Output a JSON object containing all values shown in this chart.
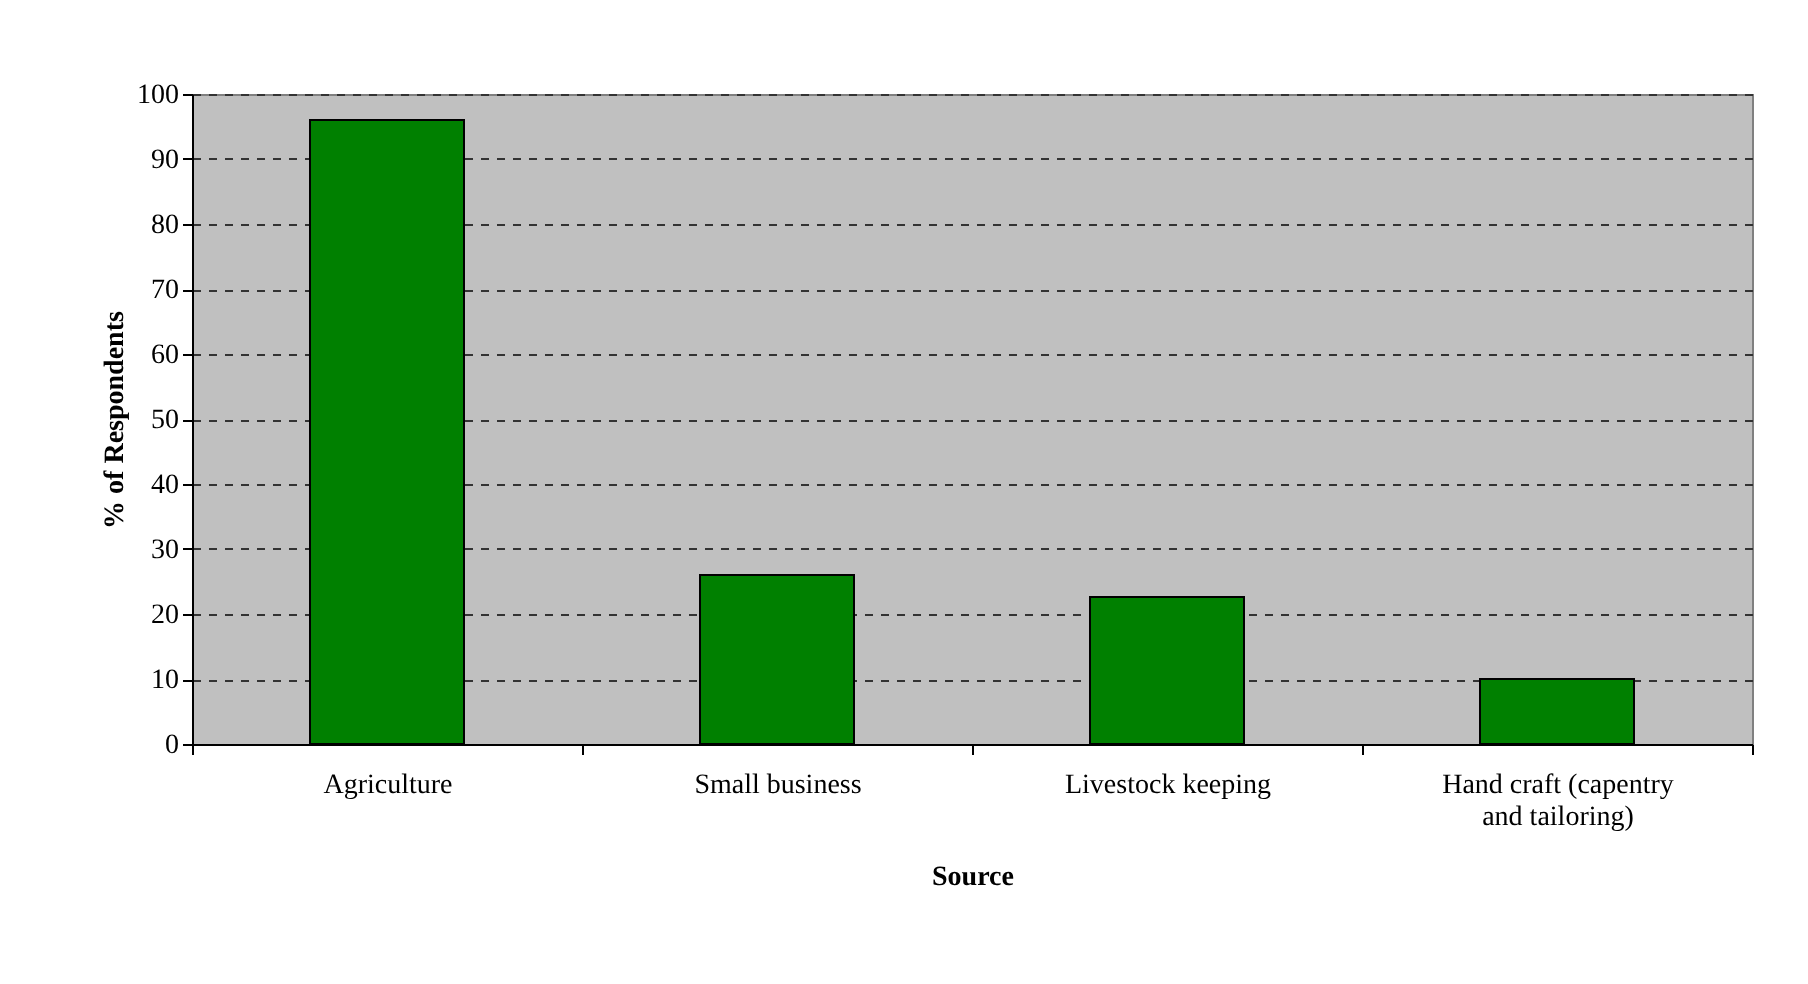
{
  "chart_data": {
    "type": "bar",
    "xlabel": "Source",
    "ylabel": "% of Respondents",
    "categories": [
      "Agriculture",
      "Small business",
      "Livestock keeping",
      "Hand craft (capentry and tailoring)"
    ],
    "values": [
      96,
      26,
      22.6,
      10
    ],
    "color": "#008000",
    "ylim": [
      0,
      100
    ],
    "yticks": [
      0,
      10,
      20,
      30,
      40,
      50,
      60,
      70,
      80,
      90,
      100
    ],
    "grid": "y"
  }
}
